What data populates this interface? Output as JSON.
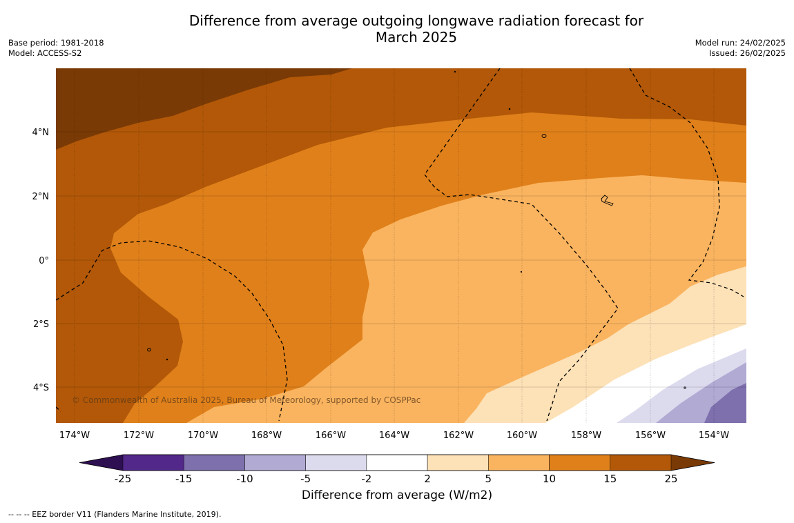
{
  "header": {
    "title_line1": "Difference from average outgoing longwave radiation forecast for",
    "title_line2": "March 2025",
    "base_period": "Base period: 1981-2018",
    "model": "Model: ACCESS-S2",
    "model_run": "Model run: 24/02/2025",
    "issued": "Issued: 26/02/2025"
  },
  "map": {
    "lon_labels": [
      "174°W",
      "172°W",
      "170°W",
      "168°W",
      "166°W",
      "164°W",
      "162°W",
      "160°W",
      "158°W",
      "156°W",
      "154°W"
    ],
    "lat_labels": [
      "4°N",
      "2°N",
      "0°",
      "2°S",
      "4°S"
    ],
    "copyright": "© Commonwealth of Australia 2025, Bureau of Meteorology, supported by COSPPac"
  },
  "colorbar": {
    "labels": [
      "-25",
      "-15",
      "-10",
      "-5",
      "-2",
      "2",
      "5",
      "10",
      "15",
      "25"
    ],
    "colors": [
      "#52288a",
      "#7e6fad",
      "#b1aad3",
      "#dcdbee",
      "#ffffff",
      "#fde1b7",
      "#fab45f",
      "#e0801a",
      "#b25808"
    ],
    "low_extend_color": "#2e0f52",
    "high_extend_color": "#7a3a05",
    "title": "Difference from average (W/m2)"
  },
  "footnote": "--  --  -- EEZ border V11 (Flanders Marine Institute, 2019)."
}
